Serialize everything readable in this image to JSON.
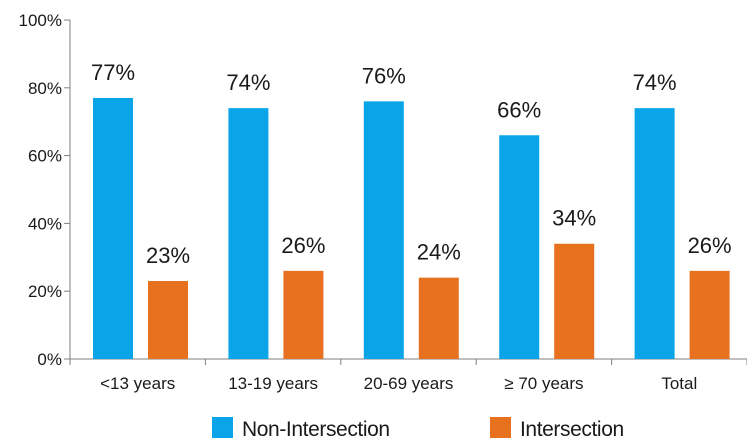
{
  "chart_data": {
    "type": "bar",
    "categories": [
      "<13 years",
      "13-19 years",
      "20-69 years",
      "≥ 70 years",
      "Total"
    ],
    "series": [
      {
        "name": "Non-Intersection",
        "color": "#0aa5e8",
        "values": [
          77,
          74,
          76,
          66,
          74
        ],
        "labels": [
          "77%",
          "74%",
          "76%",
          "66%",
          "74%"
        ]
      },
      {
        "name": "Intersection",
        "color": "#e8711f",
        "values": [
          23,
          26,
          24,
          34,
          26
        ],
        "labels": [
          "23%",
          "26%",
          "24%",
          "34%",
          "26%"
        ]
      }
    ],
    "ylim": [
      0,
      100
    ],
    "yticks": [
      0,
      20,
      40,
      60,
      80,
      100
    ],
    "ytick_labels": [
      "0%",
      "20%",
      "40%",
      "60%",
      "80%",
      "100%"
    ],
    "grid": false,
    "legend": "bottom",
    "axis_color": "#7f7f7f"
  }
}
